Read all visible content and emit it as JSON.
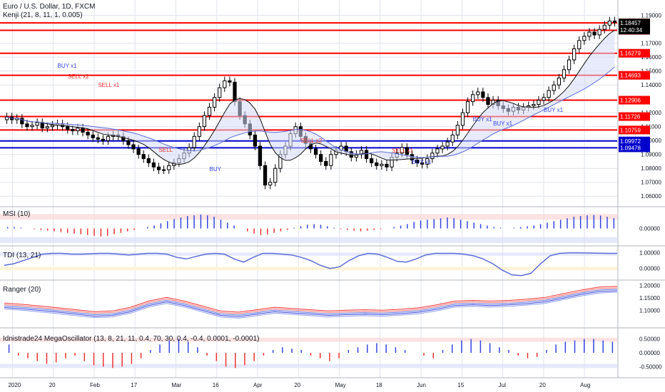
{
  "header": {
    "symbol": "Euro / U.S. Dollar, 1D, FXCM",
    "study": "Kenji (21, 8, 11, 1, 0.005)"
  },
  "panes": {
    "msi": "MSI (10)",
    "tdi": "TDI (13, 21)",
    "ranger": "Ranger (20)",
    "mega": "Idnistrade24 MegaOscillator (13, 8, 21, 11, 0.4, 70, 30, 0.4, -0.4, 0.0001, -0.0001)"
  },
  "colors": {
    "bg": "#ffffff",
    "grid": "#e0e3eb",
    "candle": "#000000",
    "red_level": "#ff0000",
    "blue_level": "#0000cc",
    "ma": "#5b6cd6",
    "hist_up": "#3344dd",
    "hist_down": "#ee3333",
    "zone_up": "#d6daf7",
    "zone_down": "#f8d0d0",
    "price_label_bg": "#000000"
  },
  "chart_data": [
    {
      "type": "candlestick",
      "y_ticks": [
        "1.19000",
        "1.17000",
        "1.16000",
        "1.15000",
        "1.14000",
        "1.12000",
        "1.11000",
        "1.10000",
        "1.09000",
        "1.08000",
        "1.07000",
        "1.06000"
      ],
      "y_tick_values": [
        1.19,
        1.17,
        1.16,
        1.15,
        1.14,
        1.12,
        1.11,
        1.1,
        1.09,
        1.08,
        1.07,
        1.06
      ],
      "ylim": [
        1.055,
        1.197
      ],
      "x_ticks": [
        "2020",
        "20",
        "Feb",
        "17",
        "Mar",
        "16",
        "Apr",
        "20",
        "May",
        "18",
        "Jun",
        "15",
        "Jul",
        "20",
        "Aug"
      ],
      "red_levels": [
        "1.18465",
        "1.17934",
        "1.16279",
        "1.14693",
        "1.12906",
        "1.11726",
        "1.10759"
      ],
      "red_level_values": [
        1.18465,
        1.17934,
        1.16279,
        1.14693,
        1.12906,
        1.11726,
        1.10759
      ],
      "blue_levels": [
        "1.09972",
        "1.09478"
      ],
      "blue_level_values": [
        1.09972,
        1.09478
      ],
      "current_price": "1.18457",
      "current_price_value": 1.18457,
      "countdown": "12:40:34",
      "signals": [
        "SELL x2",
        "SELL x1",
        "BUY x1",
        "SELL",
        "BUY",
        "SELL x2",
        "SELL x1",
        "BUY x1",
        "BUY x1",
        "BUY x1",
        "BUY x1"
      ],
      "closes": [
        1.117,
        1.115,
        1.116,
        1.112,
        1.11,
        1.111,
        1.113,
        1.109,
        1.11,
        1.111,
        1.112,
        1.11,
        1.108,
        1.107,
        1.109,
        1.106,
        1.104,
        1.102,
        1.101,
        1.1,
        1.103,
        1.104,
        1.103,
        1.1,
        1.097,
        1.094,
        1.09,
        1.087,
        1.084,
        1.081,
        1.079,
        1.079,
        1.082,
        1.084,
        1.087,
        1.091,
        1.095,
        1.103,
        1.11,
        1.118,
        1.124,
        1.131,
        1.138,
        1.143,
        1.142,
        1.128,
        1.118,
        1.112,
        1.104,
        1.096,
        1.082,
        1.068,
        1.07,
        1.08,
        1.09,
        1.096,
        1.105,
        1.11,
        1.103,
        1.098,
        1.094,
        1.09,
        1.085,
        1.082,
        1.09,
        1.093,
        1.096,
        1.092,
        1.088,
        1.09,
        1.093,
        1.087,
        1.084,
        1.082,
        1.083,
        1.081,
        1.088,
        1.091,
        1.095,
        1.09,
        1.086,
        1.084,
        1.083,
        1.087,
        1.091,
        1.094,
        1.096,
        1.099,
        1.104,
        1.111,
        1.12,
        1.128,
        1.133,
        1.135,
        1.131,
        1.126,
        1.129,
        1.125,
        1.123,
        1.121,
        1.124,
        1.122,
        1.124,
        1.125,
        1.126,
        1.129,
        1.131,
        1.136,
        1.14,
        1.145,
        1.151,
        1.158,
        1.166,
        1.172,
        1.175,
        1.178,
        1.176,
        1.18,
        1.183,
        1.186,
        1.185
      ]
    },
    {
      "type": "bar",
      "name": "MSI (10)",
      "y_ticks": [
        "0.00000"
      ],
      "values": [
        0.1,
        0.1,
        0.05,
        0,
        -0.05,
        -0.1,
        -0.15,
        -0.2,
        -0.25,
        -0.3,
        -0.35,
        -0.4,
        -0.45,
        -0.5,
        -0.55,
        -0.5,
        -0.4,
        -0.3,
        -0.2,
        -0.1,
        0,
        0.1,
        0.2,
        0.35,
        0.5,
        0.65,
        0.75,
        0.85,
        0.9,
        0.95,
        0.9,
        0.8,
        0.6,
        0.4,
        0.2,
        0,
        -0.2,
        -0.35,
        -0.45,
        -0.4,
        -0.3,
        -0.2,
        -0.1,
        0.05,
        0.15,
        0.25,
        0.3,
        0.25,
        0.15,
        0.05,
        -0.05,
        -0.1,
        -0.15,
        -0.2,
        -0.15,
        -0.1,
        -0.05,
        0,
        0.1,
        0.2,
        0.3,
        0.45,
        0.55,
        0.6,
        0.65,
        0.7,
        0.75,
        0.7,
        0.6,
        0.5,
        0.4,
        0.3,
        0.2,
        0.1,
        0.05,
        0,
        0.05,
        0.1,
        0.15,
        0.2,
        0.3,
        0.4,
        0.5,
        0.6,
        0.7,
        0.8,
        0.85,
        0.9,
        0.92,
        0.88,
        0.8,
        0.7
      ],
      "ylim": [
        -1,
        1.2
      ]
    },
    {
      "type": "line",
      "name": "TDI (13, 21)",
      "y_ticks": [
        "1.00000",
        "0.00000"
      ],
      "values": [
        0.2,
        0.3,
        0.5,
        0.7,
        0.9,
        0.95,
        0.95,
        0.9,
        0.9,
        0.92,
        0.95,
        0.95,
        0.9,
        0.85,
        0.9,
        0.95,
        0.95,
        0.9,
        0.7,
        0.6,
        0.75,
        0.9,
        0.95,
        0.9,
        0.6,
        0.4,
        0.7,
        0.95,
        0.95,
        0.9,
        0.85,
        0.7,
        0.5,
        0.2,
        0.0,
        0.1,
        0.5,
        0.8,
        0.95,
        0.9,
        0.7,
        0.45,
        0.4,
        0.6,
        0.85,
        0.95,
        0.95,
        0.95,
        0.9,
        0.8,
        0.6,
        0.3,
        -0.1,
        -0.4,
        -0.45,
        -0.3,
        0.3,
        0.8,
        0.95,
        0.98,
        0.98,
        0.97,
        0.96,
        0.95,
        0.95
      ],
      "ylim": [
        -0.55,
        1.15
      ]
    },
    {
      "type": "line",
      "name": "Ranger (20)",
      "y_ticks": [
        "1.20000",
        "1.15000",
        "1.10000"
      ],
      "values": [
        1.117,
        1.112,
        1.105,
        1.098,
        1.09,
        1.082,
        1.085,
        1.1,
        1.125,
        1.14,
        1.125,
        1.105,
        1.085,
        1.08,
        1.09,
        1.1,
        1.095,
        1.09,
        1.085,
        1.088,
        1.09,
        1.088,
        1.092,
        1.098,
        1.11,
        1.125,
        1.128,
        1.125,
        1.128,
        1.133,
        1.14,
        1.155,
        1.17,
        1.182,
        1.185
      ],
      "ylim": [
        1.04,
        1.205
      ]
    },
    {
      "type": "bar",
      "name": "Idnistrade24 MegaOscillator",
      "y_ticks": [
        "0.50000",
        "0.00000",
        "-0.50000"
      ],
      "values": [
        0.3,
        -0.1,
        -0.2,
        -0.3,
        -0.4,
        -0.35,
        -0.2,
        -0.1,
        -0.3,
        -0.45,
        -0.5,
        -0.55,
        -0.5,
        -0.4,
        -0.2,
        0.1,
        0.3,
        0.45,
        0.5,
        0.4,
        0.2,
        -0.1,
        -0.3,
        -0.5,
        -0.55,
        -0.45,
        -0.3,
        -0.1,
        0.1,
        0.2,
        0.15,
        0.1,
        -0.1,
        -0.2,
        -0.3,
        -0.2,
        0.1,
        0.2,
        0.3,
        0.35,
        0.3,
        0.2,
        0.1,
        0,
        -0.1,
        -0.2,
        0.1,
        0.3,
        0.45,
        0.5,
        0.45,
        0.35,
        0.2,
        0.1,
        -0.1,
        -0.2,
        -0.15,
        0.1,
        0.3,
        0.4,
        0.45,
        0.5,
        0.5,
        0.45,
        0.4
      ],
      "ylim": [
        -0.8,
        0.75
      ]
    }
  ],
  "x_axis": {
    "labels": [
      "2020",
      "20",
      "Feb",
      "17",
      "Mar",
      "16",
      "Apr",
      "20",
      "May",
      "18",
      "Jun",
      "15",
      "Jul",
      "20",
      "Aug"
    ]
  }
}
